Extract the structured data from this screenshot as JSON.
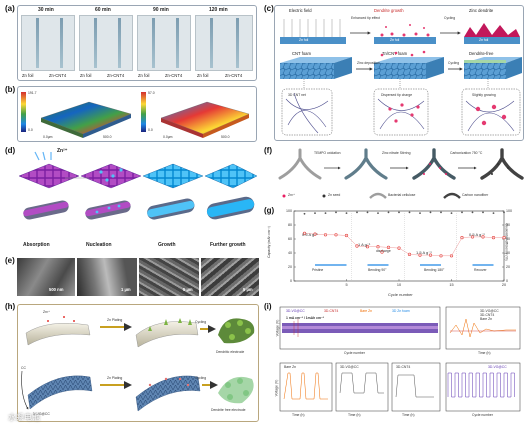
{
  "panel_a": {
    "label": "(a)",
    "times": [
      "30 min",
      "60 min",
      "90 min",
      "120 min"
    ],
    "foil_labels": [
      "Zn foil",
      "Zn-CNT4"
    ]
  },
  "panel_b": {
    "label": "(b)",
    "left_scale": [
      "191.7",
      "160.0",
      "140.0",
      "120.0",
      "100.0",
      "80.0",
      "60.0",
      "40.0",
      "20.0",
      "0.0"
    ],
    "right_scale": [
      "57.0",
      "50.0",
      "40.0",
      "30.0",
      "20.0",
      "10.0",
      "0.0"
    ],
    "left_axis": [
      "0.0µm",
      "500.0",
      "700.0",
      "200.0"
    ],
    "right_axis": [
      "0.0µm",
      "500.0",
      "700.0",
      "200.0"
    ]
  },
  "panel_c": {
    "label": "(c)",
    "top_row": [
      "Electric field",
      "Dendrite growth",
      "Zinc dendrite"
    ],
    "arrows_top": [
      "Enhanced tip effect",
      "Cycling"
    ],
    "foil_text": [
      "Zn foil",
      "Zn foil",
      "Zn foil"
    ],
    "bottom_row": [
      "CNT foam",
      "Zn/CNT foam",
      "Dendrite-free"
    ],
    "arrows_bottom": [
      "Zinc deposition",
      "Cycling"
    ],
    "callouts": [
      "3D CNT net",
      "Dispersed tip charge",
      "Slightly growing"
    ]
  },
  "panel_d": {
    "label": "(d)",
    "ion": "Zn²⁺",
    "stages": [
      "Absorption",
      "Nucleation",
      "Growth",
      "Further growth"
    ]
  },
  "panel_e": {
    "label": "(e)",
    "scales": [
      "500 nm",
      "1 µm",
      "5 µm",
      "5 µm"
    ]
  },
  "panel_f": {
    "label": "(f)",
    "steps": [
      "TEMPO oxidation",
      "Zinc nitrate Stirring",
      "Carbonization 750 °C"
    ],
    "legend": [
      "Zn²⁺",
      "Zn seed",
      "Bacterial cellulose",
      "Carbon nanofiber"
    ]
  },
  "panel_g": {
    "label": "(g)",
    "xlabel": "Cycle number",
    "ylabel_left": "Capacity (mAh cm⁻²)",
    "ylabel_right": "Coulombic efficiency (%)",
    "legend_discharge": "discharge",
    "rates": [
      "0.5 A g⁻¹",
      "1 A g⁻¹",
      "1.5 A g⁻¹",
      "0.5 A g⁻¹"
    ],
    "states": [
      "Pristine",
      "Bending 90°",
      "Bending 180°",
      "Recover"
    ],
    "xticks": [
      "5",
      "10",
      "15",
      "20"
    ],
    "yticks_left": [
      "0",
      "20",
      "40",
      "60",
      "80",
      "100"
    ],
    "yticks_right": [
      "0",
      "20",
      "40",
      "60",
      "80",
      "100"
    ]
  },
  "chart_data": [
    {
      "type": "scatter",
      "panel": "g",
      "xlabel": "Cycle number",
      "ylabel": "Capacity (mAh cm⁻²)",
      "ylabel_right": "Coulombic efficiency (%)",
      "xlim": [
        0,
        20
      ],
      "ylim": [
        0,
        100
      ],
      "series": [
        {
          "name": "discharge",
          "x": [
            1,
            2,
            3,
            4,
            5,
            6,
            7,
            8,
            9,
            10,
            11,
            12,
            13,
            14,
            15,
            16,
            17,
            18,
            19,
            20
          ],
          "y": [
            68,
            67,
            66,
            66,
            65,
            50,
            49,
            49,
            48,
            47,
            38,
            37,
            37,
            36,
            36,
            62,
            63,
            63,
            62,
            62
          ]
        },
        {
          "x": [
            1,
            2,
            3,
            4,
            5,
            6,
            7,
            8,
            9,
            10,
            11,
            12,
            13,
            14,
            15,
            16,
            17,
            18,
            19,
            20
          ],
          "y": [
            96,
            97,
            97,
            98,
            97,
            98,
            98,
            97,
            98,
            98,
            98,
            97,
            98,
            98,
            97,
            98,
            98,
            98,
            97,
            98
          ]
        }
      ]
    }
  ],
  "panel_h": {
    "label": "(h)",
    "top_arrows": [
      "Zn Plating",
      "Cycling"
    ],
    "bottom_arrows": [
      "Zn Plating",
      "Cycling"
    ],
    "top_result": "Dendritic electrode",
    "bottom_result": "Dendrite free electrode",
    "substrates": [
      "CC",
      "N-VG@CC"
    ],
    "ion": "Zn²⁺"
  },
  "panel_i": {
    "label": "(i)",
    "top_legend": [
      "3D-VG@CC",
      "3D-CNT4",
      "Bare Zn",
      "3D Zn foam"
    ],
    "current_text": "1 mA cm⁻² / 1mAh cm⁻²",
    "top_xlabel": "Cycle number",
    "top_ylabel": "Voltage (V)",
    "inset_legend": [
      "3D-VG@CC",
      "3D-CNT4",
      "Bare Zn"
    ],
    "inset_xlabel": "Time (h)",
    "bottom_labels": [
      "Bare Zn",
      "3D-VG@CC",
      "3D-CNT4"
    ],
    "bottom_xlabel": "Time (h)",
    "bottom_ylabel": "Voltage (V)",
    "bottom_right_legend": "3D-VG@CC",
    "bottom_right_xlabel": "Cycle number"
  },
  "watermark": "水系电池"
}
